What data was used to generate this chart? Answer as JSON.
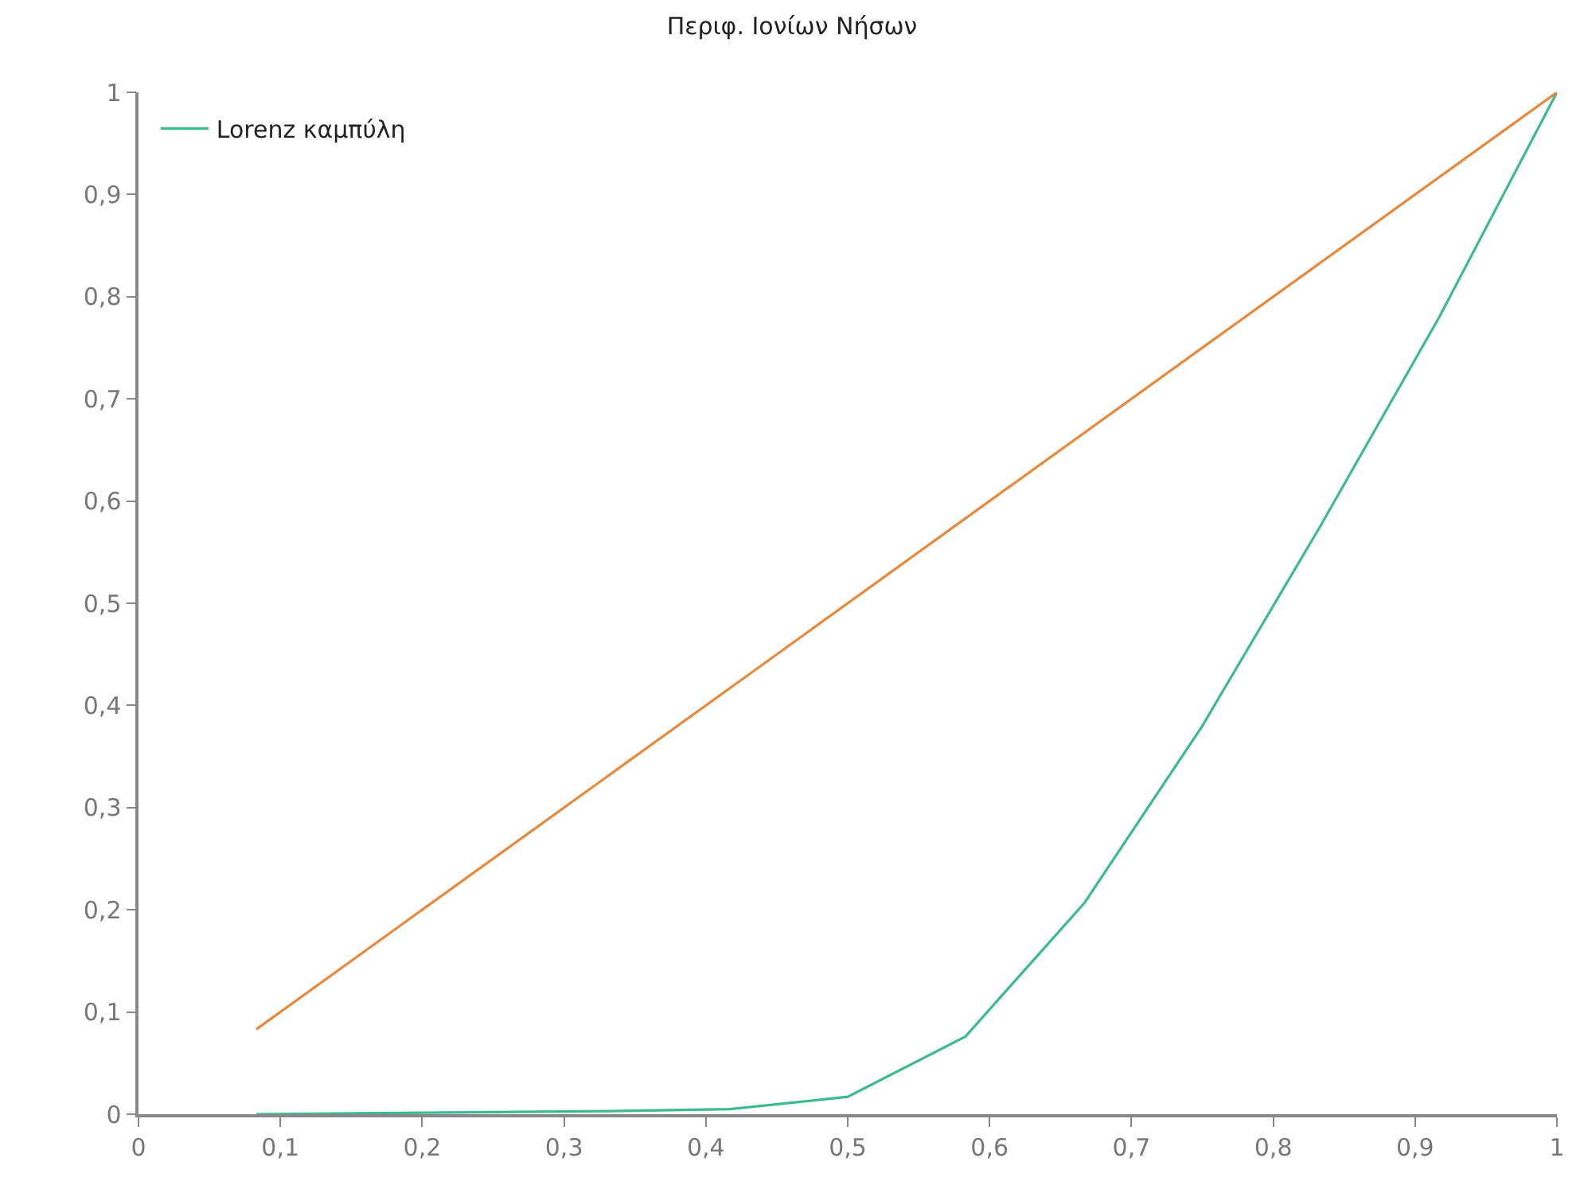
{
  "chart_data": {
    "type": "line",
    "title": "Περιφ. Ιονίων Νήσων",
    "series": [
      {
        "name": "Lorenz καμπύλη",
        "color": "#3dba8e",
        "x": [
          0.083,
          0.167,
          0.25,
          0.333,
          0.417,
          0.5,
          0.583,
          0.667,
          0.75,
          0.833,
          0.917,
          1
        ],
        "values": [
          0.0,
          0.001,
          0.002,
          0.003,
          0.005,
          0.017,
          0.076,
          0.207,
          0.38,
          0.575,
          0.78,
          1
        ]
      },
      {
        "color": "#e8883a",
        "x": [
          0.083,
          1
        ],
        "values": [
          0.083,
          1
        ]
      }
    ],
    "xlim": [
      0,
      1
    ],
    "ylim": [
      0,
      1
    ],
    "xticks": [
      0,
      {
        "value": 0.1,
        "label": "0,1"
      },
      {
        "value": 0.2,
        "label": "0,2"
      },
      {
        "value": 0.3,
        "label": "0,3"
      },
      {
        "value": 0.4,
        "label": "0,4"
      },
      {
        "value": 0.5,
        "label": "0,5"
      },
      {
        "value": 0.6,
        "label": "0,6"
      },
      {
        "value": 0.7,
        "label": "0,7"
      },
      {
        "value": 0.8,
        "label": "0,8"
      },
      {
        "value": 0.9,
        "label": "0,9"
      },
      1
    ],
    "yticks": [
      0,
      {
        "value": 0.1,
        "label": "0,1"
      },
      {
        "value": 0.2,
        "label": "0,2"
      },
      {
        "value": 0.3,
        "label": "0,3"
      },
      {
        "value": 0.4,
        "label": "0,4"
      },
      {
        "value": 0.5,
        "label": "0,5"
      },
      {
        "value": 0.6,
        "label": "0,6"
      },
      {
        "value": 0.7,
        "label": "0,7"
      },
      {
        "value": 0.8,
        "label": "0,8"
      },
      {
        "value": 0.9,
        "label": "0,9"
      },
      1
    ],
    "grid": false,
    "legend": "top left",
    "marker": "none",
    "line_style": "solid"
  }
}
